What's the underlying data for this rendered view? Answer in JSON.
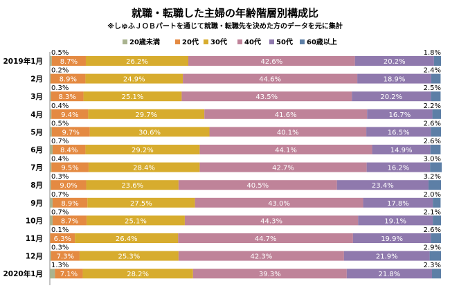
{
  "chart_data": {
    "type": "bar",
    "orientation": "horizontal",
    "stacked": true,
    "percent": true,
    "title": "就職・転職した主婦の年齢階層別構成比",
    "subtitle": "※しゅふＪＯＢパートを通じて就職・転職先を決めた方のデータを元に集計",
    "legend_position": "top",
    "categories": [
      "2019年1月",
      "2月",
      "3月",
      "4月",
      "5月",
      "6月",
      "7月",
      "8月",
      "9月",
      "10月",
      "11月",
      "12月",
      "2020年1月"
    ],
    "series": [
      {
        "name": "20歳未満",
        "color": "#a9b38f",
        "values": [
          0.5,
          0.2,
          0.3,
          0.4,
          0.5,
          0.7,
          0.4,
          0.3,
          0.7,
          0.7,
          0.1,
          0.3,
          1.3
        ]
      },
      {
        "name": "20代",
        "color": "#e48a42",
        "values": [
          8.7,
          8.9,
          8.3,
          9.4,
          9.7,
          8.4,
          9.5,
          9.0,
          8.9,
          8.7,
          6.3,
          7.3,
          7.1
        ]
      },
      {
        "name": "30代",
        "color": "#d7ac2e",
        "values": [
          26.2,
          24.9,
          25.1,
          29.7,
          30.6,
          29.2,
          28.4,
          23.6,
          27.5,
          25.1,
          26.4,
          25.3,
          28.2
        ]
      },
      {
        "name": "40代",
        "color": "#bf8399",
        "values": [
          42.6,
          44.6,
          43.5,
          41.6,
          40.1,
          44.1,
          42.7,
          40.5,
          43.0,
          44.3,
          44.7,
          42.3,
          39.3
        ]
      },
      {
        "name": "50代",
        "color": "#8f79ad",
        "values": [
          20.2,
          18.9,
          20.2,
          16.7,
          16.5,
          14.9,
          16.2,
          23.4,
          17.8,
          19.1,
          19.9,
          21.9,
          21.8
        ]
      },
      {
        "name": "60歳以上",
        "color": "#5d7fa6",
        "values": [
          1.8,
          2.4,
          2.5,
          2.2,
          2.6,
          2.6,
          3.0,
          3.2,
          2.0,
          2.1,
          2.6,
          2.9,
          2.3
        ]
      }
    ],
    "value_format": "{v}%",
    "xlim": [
      0,
      100
    ]
  }
}
